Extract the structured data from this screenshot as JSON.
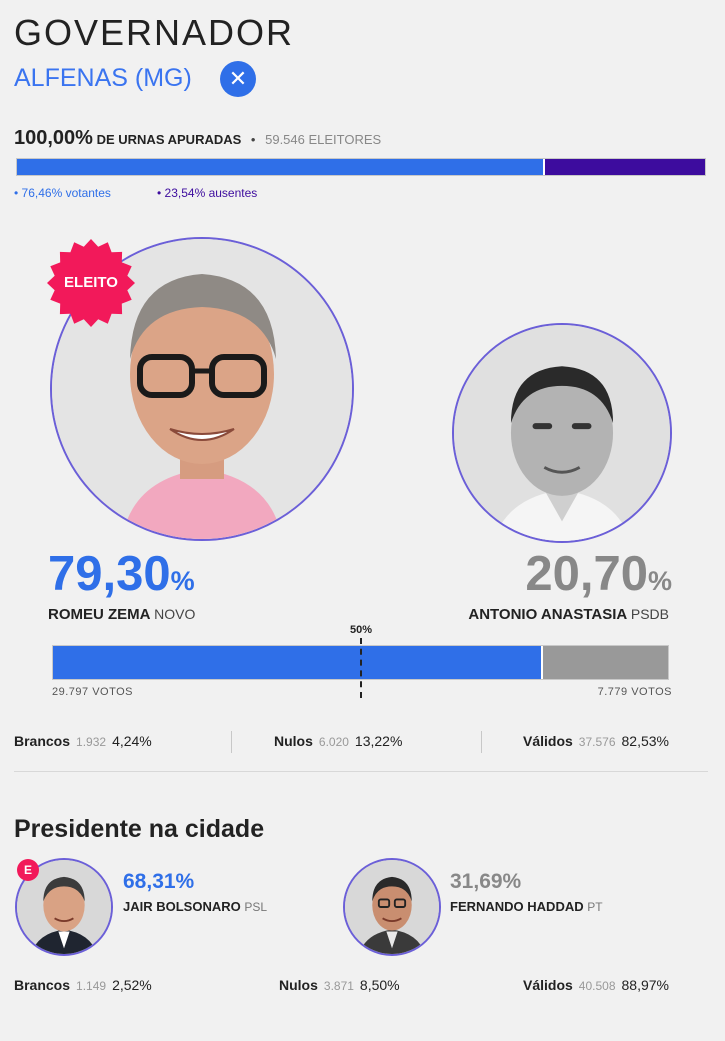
{
  "header": {
    "title": "GOVERNADOR",
    "city": "ALFENAS (MG)",
    "close_icon": "close-icon"
  },
  "apuracao": {
    "percent": "100,00%",
    "label": "DE URNAS APURADAS",
    "separator": "•",
    "eleitores": "59.546 ELEITORES",
    "votantes_pct": 76.46,
    "ausentes_pct": 23.54,
    "votantes_label": "• 76,46% votantes",
    "ausentes_label": "• 23,54% ausentes",
    "colors": {
      "votantes": "#2f6fe8",
      "ausentes": "#3d0c9e"
    }
  },
  "governador": {
    "elected_badge": "ELEITO",
    "candidates": [
      {
        "pct": "79,30",
        "pct_unit": "%",
        "name": "ROMEU ZEMA",
        "party": "NOVO",
        "votes": "29.797 VOTOS",
        "share": 79.3
      },
      {
        "pct": "20,70",
        "pct_unit": "%",
        "name": "ANTONIO ANASTASIA",
        "party": "PSDB",
        "votes": "7.779 VOTOS",
        "share": 20.7
      }
    ],
    "midline_label": "50%",
    "stats": {
      "brancos": {
        "label": "Brancos",
        "count": "1.932",
        "pct": "4,24%"
      },
      "nulos": {
        "label": "Nulos",
        "count": "6.020",
        "pct": "13,22%"
      },
      "validos": {
        "label": "Válidos",
        "count": "37.576",
        "pct": "82,53%"
      }
    }
  },
  "presidente": {
    "title": "Presidente na cidade",
    "elected_badge": "E",
    "candidates": [
      {
        "pct": "68,31%",
        "name": "JAIR BOLSONARO",
        "party": "PSL"
      },
      {
        "pct": "31,69%",
        "name": "FERNANDO HADDAD",
        "party": "PT"
      }
    ],
    "stats": {
      "brancos": {
        "label": "Brancos",
        "count": "1.149",
        "pct": "2,52%"
      },
      "nulos": {
        "label": "Nulos",
        "count": "3.871",
        "pct": "8,50%"
      },
      "validos": {
        "label": "Válidos",
        "count": "40.508",
        "pct": "88,97%"
      }
    }
  }
}
